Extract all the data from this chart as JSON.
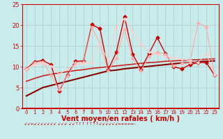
{
  "xlabel": "Vent moyen/en rafales ( km/h )",
  "xlim": [
    -0.5,
    23.5
  ],
  "ylim": [
    0,
    25
  ],
  "yticks": [
    0,
    5,
    10,
    15,
    20,
    25
  ],
  "xticks": [
    0,
    1,
    2,
    3,
    4,
    5,
    6,
    7,
    8,
    9,
    10,
    11,
    12,
    13,
    14,
    15,
    16,
    17,
    18,
    19,
    20,
    21,
    22,
    23
  ],
  "background_color": "#c8ecec",
  "grid_color": "#b0cccc",
  "series": [
    {
      "x": [
        0,
        1,
        2,
        3,
        4,
        5,
        6,
        7,
        8,
        9,
        10,
        11,
        12,
        13,
        14,
        15,
        16,
        17,
        18,
        19,
        20,
        21,
        22,
        23
      ],
      "y": [
        9.5,
        11.2,
        11.5,
        10.5,
        4.2,
        8.0,
        11.3,
        11.4,
        20.1,
        19.1,
        9.3,
        13.5,
        22.0,
        13.0,
        9.4,
        13.2,
        17.0,
        13.2,
        10.0,
        9.5,
        10.5,
        11.0,
        11.0,
        8.0
      ],
      "color": "#cc0000",
      "lw": 1.0,
      "marker": "D",
      "ms": 2.5
    },
    {
      "x": [
        0,
        1,
        2,
        3,
        4,
        5,
        6,
        7,
        8,
        9,
        10,
        11,
        12,
        13,
        14,
        15,
        16,
        17,
        18,
        19,
        20,
        21,
        22,
        23
      ],
      "y": [
        9.3,
        11.0,
        11.2,
        8.0,
        4.5,
        7.8,
        11.0,
        11.1,
        19.5,
        15.5,
        9.0,
        12.0,
        19.0,
        12.0,
        9.0,
        12.5,
        13.5,
        13.0,
        10.2,
        10.8,
        11.0,
        20.5,
        19.5,
        8.0
      ],
      "color": "#ffaaaa",
      "lw": 0.8,
      "marker": "D",
      "ms": 2.0
    },
    {
      "x": [
        0,
        1,
        2,
        3,
        4,
        5,
        6,
        7,
        8,
        9,
        10,
        11,
        12,
        13,
        14,
        15,
        16,
        17,
        18,
        19,
        20,
        21,
        22,
        23
      ],
      "y": [
        3.0,
        4.0,
        5.0,
        5.5,
        6.0,
        6.5,
        7.0,
        7.5,
        8.0,
        8.5,
        9.0,
        9.2,
        9.5,
        9.7,
        9.9,
        10.1,
        10.3,
        10.5,
        10.7,
        10.9,
        11.0,
        11.2,
        11.3,
        11.4
      ],
      "color": "#880000",
      "lw": 1.5,
      "marker": null,
      "ms": 0
    },
    {
      "x": [
        0,
        1,
        2,
        3,
        4,
        5,
        6,
        7,
        8,
        9,
        10,
        11,
        12,
        13,
        14,
        15,
        16,
        17,
        18,
        19,
        20,
        21,
        22,
        23
      ],
      "y": [
        6.5,
        7.2,
        7.8,
        8.2,
        8.5,
        8.8,
        9.1,
        9.3,
        9.6,
        9.8,
        10.0,
        10.2,
        10.4,
        10.6,
        10.8,
        11.0,
        11.1,
        11.3,
        11.4,
        11.5,
        11.6,
        11.7,
        11.8,
        11.9
      ],
      "color": "#cc2222",
      "lw": 1.2,
      "marker": null,
      "ms": 0
    },
    {
      "x": [
        0,
        1,
        2,
        3,
        4,
        5,
        6,
        7,
        8,
        9,
        10,
        11,
        12,
        13,
        14,
        15,
        16,
        17,
        18,
        19,
        20,
        21,
        22,
        23
      ],
      "y": [
        9.5,
        10.5,
        10.8,
        10.2,
        8.2,
        9.5,
        10.5,
        10.8,
        11.0,
        15.5,
        11.5,
        19.5,
        21.5,
        18.5,
        15.5,
        13.5,
        13.0,
        12.5,
        12.2,
        11.8,
        11.5,
        11.0,
        13.2,
        8.2
      ],
      "color": "#ffcccc",
      "lw": 0.8,
      "marker": "D",
      "ms": 1.8
    }
  ],
  "xlabel_fontsize": 7,
  "ytick_fontsize": 6,
  "xtick_fontsize": 5
}
